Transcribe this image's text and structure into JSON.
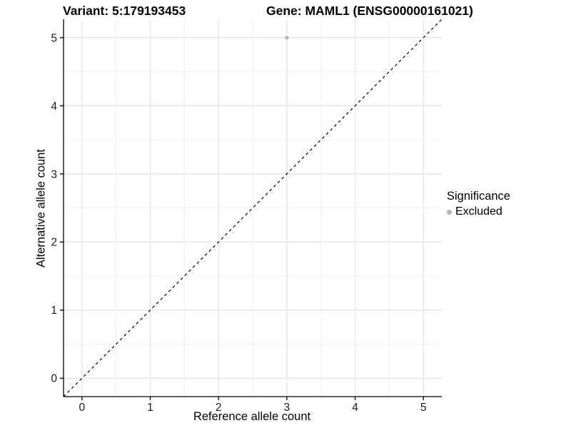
{
  "titles": {
    "variant": "Variant: 5:179193453",
    "gene": "Gene: MAML1 (ENSG00000161021)"
  },
  "axes": {
    "x": {
      "label": "Reference allele count",
      "tick_labels": [
        "0",
        "1",
        "2",
        "3",
        "4",
        "5"
      ]
    },
    "y": {
      "label": "Alternative allele count",
      "tick_labels": [
        "0",
        "1",
        "2",
        "3",
        "4",
        "5"
      ]
    }
  },
  "legend": {
    "title": "Significance",
    "items": [
      {
        "label": "Excluded",
        "marker": "dot",
        "color": "#b3b3b3"
      }
    ]
  },
  "chart_data": {
    "type": "scatter",
    "title": "Variant: 5:179193453 | Gene: MAML1 (ENSG00000161021)",
    "xlabel": "Reference allele count",
    "ylabel": "Alternative allele count",
    "xlim": [
      -0.27,
      5.27
    ],
    "ylim": [
      -0.27,
      5.27
    ],
    "x_ticks": [
      0,
      1,
      2,
      3,
      4,
      5
    ],
    "y_ticks": [
      0,
      1,
      2,
      3,
      4,
      5
    ],
    "grid": {
      "major": true,
      "minor": true
    },
    "legend_position": "right",
    "series": [
      {
        "name": "Excluded",
        "color": "#b3b3b3",
        "point_radius": 2.6,
        "points": [
          {
            "x": 3,
            "y": 5
          }
        ]
      }
    ],
    "reference_line": {
      "kind": "identity",
      "equation": "y = x",
      "style": "dashed",
      "color": "#000000"
    },
    "colors": {
      "grid_major": "#e3e3e3",
      "grid_minor": "#f1f1f1",
      "axis": "#000000",
      "tick_text": "#1a1a1a"
    }
  }
}
